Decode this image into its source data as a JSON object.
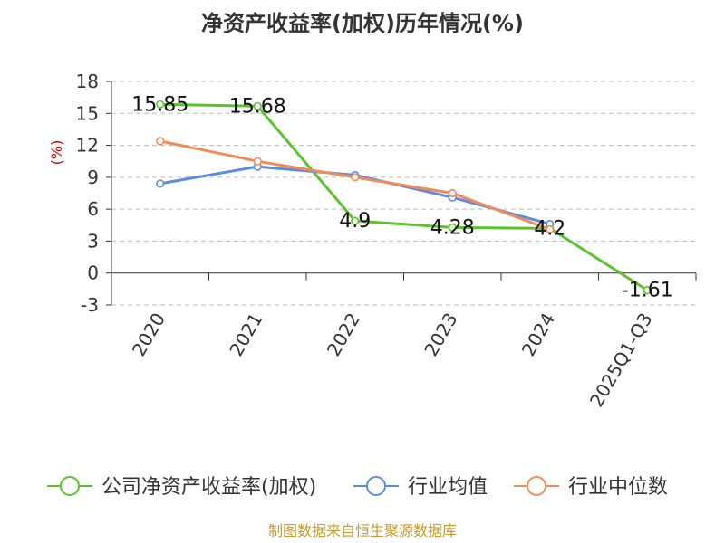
{
  "colors": {
    "series": [
      "#5cc22d",
      "#5b8ddb",
      "#f08c5a"
    ],
    "axis": "#333333",
    "grid": "#bbbbbb",
    "unit": "#cc0000",
    "source": "#c49a2c"
  },
  "chart_data": {
    "type": "line",
    "title": "净资产收益率(加权)历年情况(%)",
    "ylabel": "(%)",
    "xlabel": "",
    "categories": [
      "2020",
      "2021",
      "2022",
      "2023",
      "2024",
      "2025Q1-Q3"
    ],
    "ylim": [
      -3,
      18
    ],
    "yticks": [
      18,
      15,
      12,
      9,
      6,
      3,
      0,
      -3
    ],
    "grid": "horizontal dashed",
    "legend_position": "bottom",
    "series": [
      {
        "name": "公司净资产收益率(加权)",
        "values": [
          15.85,
          15.68,
          4.9,
          4.28,
          4.2,
          -1.61
        ],
        "labels": [
          "15.85",
          "15.68",
          "4.9",
          "4.28",
          "4.2",
          "-1.61"
        ]
      },
      {
        "name": "行业均值",
        "values": [
          8.4,
          10.0,
          9.2,
          7.1,
          4.6,
          null
        ]
      },
      {
        "name": "行业中位数",
        "values": [
          12.4,
          10.5,
          9.0,
          7.5,
          4.1,
          null
        ]
      }
    ]
  },
  "footer": {
    "source": "制图数据来自恒生聚源数据库"
  }
}
